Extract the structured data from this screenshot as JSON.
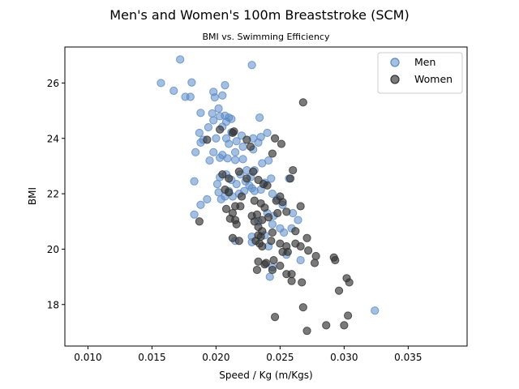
{
  "chart_data": {
    "type": "scatter",
    "title": "Men's and Women's 100m Breaststroke (SCM)",
    "subtitle": "BMI vs. Swimming Efficiency",
    "xlabel": "Speed / Kg (m/Kgs)",
    "ylabel": "BMI",
    "xlim": [
      0.0082,
      0.0396
    ],
    "ylim": [
      16.5,
      27.3
    ],
    "xticks": [
      "0.010",
      "0.015",
      "0.020",
      "0.025",
      "0.030",
      "0.035"
    ],
    "yticks": [
      "18",
      "20",
      "22",
      "24",
      "26"
    ],
    "legend_position": "top-right",
    "grid": false,
    "series": [
      {
        "name": "Men",
        "color": "#5b8ac6",
        "points": [
          [
            0.0172,
            26.85
          ],
          [
            0.0157,
            26.0
          ],
          [
            0.0181,
            26.02
          ],
          [
            0.0167,
            25.72
          ],
          [
            0.0176,
            25.5
          ],
          [
            0.018,
            25.5
          ],
          [
            0.0228,
            26.65
          ],
          [
            0.0198,
            25.68
          ],
          [
            0.0207,
            25.92
          ],
          [
            0.0205,
            25.55
          ],
          [
            0.0199,
            25.48
          ],
          [
            0.0202,
            25.08
          ],
          [
            0.0188,
            24.92
          ],
          [
            0.0197,
            24.9
          ],
          [
            0.0203,
            24.8
          ],
          [
            0.0207,
            24.82
          ],
          [
            0.021,
            24.75
          ],
          [
            0.0212,
            24.7
          ],
          [
            0.0208,
            24.6
          ],
          [
            0.0198,
            24.65
          ],
          [
            0.0194,
            24.4
          ],
          [
            0.0205,
            24.42
          ],
          [
            0.0212,
            24.22
          ],
          [
            0.0187,
            24.2
          ],
          [
            0.019,
            23.95
          ],
          [
            0.02,
            24.0
          ],
          [
            0.0208,
            24.0
          ],
          [
            0.0216,
            23.9
          ],
          [
            0.021,
            23.8
          ],
          [
            0.0188,
            23.85
          ],
          [
            0.0198,
            23.5
          ],
          [
            0.0184,
            23.5
          ],
          [
            0.0205,
            23.4
          ],
          [
            0.0215,
            23.5
          ],
          [
            0.0221,
            23.7
          ],
          [
            0.0229,
            23.6
          ],
          [
            0.0195,
            23.2
          ],
          [
            0.0203,
            23.3
          ],
          [
            0.0209,
            23.28
          ],
          [
            0.0215,
            23.22
          ],
          [
            0.0221,
            23.25
          ],
          [
            0.0234,
            24.75
          ],
          [
            0.0235,
            24.05
          ],
          [
            0.0233,
            23.85
          ],
          [
            0.024,
            24.2
          ],
          [
            0.022,
            24.1
          ],
          [
            0.0229,
            24.0
          ],
          [
            0.0241,
            23.2
          ],
          [
            0.0236,
            23.1
          ],
          [
            0.0183,
            22.45
          ],
          [
            0.0201,
            22.35
          ],
          [
            0.0203,
            22.6
          ],
          [
            0.0208,
            22.7
          ],
          [
            0.0212,
            22.5
          ],
          [
            0.0216,
            22.35
          ],
          [
            0.0219,
            22.7
          ],
          [
            0.0224,
            22.85
          ],
          [
            0.0227,
            22.6
          ],
          [
            0.0223,
            22.45
          ],
          [
            0.0226,
            22.3
          ],
          [
            0.023,
            22.85
          ],
          [
            0.0228,
            22.2
          ],
          [
            0.0222,
            22.1
          ],
          [
            0.0218,
            22.0
          ],
          [
            0.023,
            22.1
          ],
          [
            0.0235,
            22.15
          ],
          [
            0.0238,
            22.4
          ],
          [
            0.0243,
            22.55
          ],
          [
            0.021,
            22.1
          ],
          [
            0.0213,
            21.9
          ],
          [
            0.0204,
            21.8
          ],
          [
            0.0193,
            21.8
          ],
          [
            0.0188,
            21.6
          ],
          [
            0.0202,
            22.05
          ],
          [
            0.0207,
            21.9
          ],
          [
            0.0244,
            22.0
          ],
          [
            0.0248,
            21.8
          ],
          [
            0.0252,
            21.6
          ],
          [
            0.0257,
            22.55
          ],
          [
            0.026,
            21.3
          ],
          [
            0.0264,
            21.05
          ],
          [
            0.0245,
            21.2
          ],
          [
            0.024,
            21.3
          ],
          [
            0.0183,
            21.25
          ],
          [
            0.0233,
            21.0
          ],
          [
            0.0244,
            20.9
          ],
          [
            0.0238,
            20.5
          ],
          [
            0.025,
            20.75
          ],
          [
            0.0259,
            20.75
          ],
          [
            0.0253,
            20.6
          ],
          [
            0.0228,
            20.45
          ],
          [
            0.0228,
            20.25
          ],
          [
            0.0215,
            20.3
          ],
          [
            0.0241,
            20.1
          ],
          [
            0.0244,
            19.35
          ],
          [
            0.0242,
            19.0
          ],
          [
            0.0255,
            19.8
          ],
          [
            0.0266,
            19.6
          ],
          [
            0.0324,
            17.78
          ]
        ]
      },
      {
        "name": "Women",
        "color": "#333333",
        "points": [
          [
            0.0268,
            25.3
          ],
          [
            0.0203,
            24.32
          ],
          [
            0.0214,
            24.25
          ],
          [
            0.0213,
            24.2
          ],
          [
            0.0193,
            23.95
          ],
          [
            0.0246,
            24.0
          ],
          [
            0.0251,
            23.8
          ],
          [
            0.0224,
            23.95
          ],
          [
            0.0227,
            23.7
          ],
          [
            0.0244,
            23.45
          ],
          [
            0.026,
            22.85
          ],
          [
            0.0218,
            22.8
          ],
          [
            0.0205,
            22.7
          ],
          [
            0.021,
            22.55
          ],
          [
            0.0224,
            22.55
          ],
          [
            0.0229,
            22.8
          ],
          [
            0.0233,
            22.5
          ],
          [
            0.0237,
            22.35
          ],
          [
            0.024,
            22.3
          ],
          [
            0.0258,
            22.55
          ],
          [
            0.0207,
            22.15
          ],
          [
            0.021,
            22.05
          ],
          [
            0.022,
            21.9
          ],
          [
            0.023,
            21.75
          ],
          [
            0.0235,
            21.65
          ],
          [
            0.0238,
            21.5
          ],
          [
            0.0247,
            21.75
          ],
          [
            0.025,
            21.9
          ],
          [
            0.0252,
            21.7
          ],
          [
            0.0266,
            21.55
          ],
          [
            0.0215,
            21.55
          ],
          [
            0.0219,
            21.55
          ],
          [
            0.0208,
            21.45
          ],
          [
            0.0213,
            21.3
          ],
          [
            0.0228,
            21.2
          ],
          [
            0.0232,
            21.25
          ],
          [
            0.0236,
            21.05
          ],
          [
            0.0241,
            21.15
          ],
          [
            0.0248,
            21.3
          ],
          [
            0.0255,
            21.35
          ],
          [
            0.0211,
            21.1
          ],
          [
            0.0215,
            21.05
          ],
          [
            0.0216,
            20.9
          ],
          [
            0.0187,
            21.0
          ],
          [
            0.023,
            21.0
          ],
          [
            0.0233,
            20.8
          ],
          [
            0.0236,
            20.65
          ],
          [
            0.0233,
            20.5
          ],
          [
            0.0235,
            20.45
          ],
          [
            0.0244,
            20.6
          ],
          [
            0.0262,
            20.65
          ],
          [
            0.0243,
            20.3
          ],
          [
            0.0231,
            20.3
          ],
          [
            0.0234,
            20.2
          ],
          [
            0.0236,
            20.1
          ],
          [
            0.0213,
            20.4
          ],
          [
            0.0218,
            20.3
          ],
          [
            0.025,
            20.2
          ],
          [
            0.0255,
            20.1
          ],
          [
            0.0262,
            20.2
          ],
          [
            0.0266,
            20.1
          ],
          [
            0.0271,
            20.4
          ],
          [
            0.0252,
            19.9
          ],
          [
            0.0256,
            19.9
          ],
          [
            0.0272,
            19.95
          ],
          [
            0.0278,
            19.75
          ],
          [
            0.0292,
            19.7
          ],
          [
            0.0293,
            19.6
          ],
          [
            0.0277,
            19.5
          ],
          [
            0.0233,
            19.55
          ],
          [
            0.0239,
            19.5
          ],
          [
            0.0238,
            19.45
          ],
          [
            0.0245,
            19.6
          ],
          [
            0.025,
            19.4
          ],
          [
            0.0232,
            19.25
          ],
          [
            0.0244,
            19.25
          ],
          [
            0.0255,
            19.1
          ],
          [
            0.0259,
            19.1
          ],
          [
            0.0259,
            18.85
          ],
          [
            0.0267,
            18.8
          ],
          [
            0.0302,
            18.95
          ],
          [
            0.0304,
            18.8
          ],
          [
            0.0296,
            18.5
          ],
          [
            0.0268,
            17.9
          ],
          [
            0.0246,
            17.55
          ],
          [
            0.0303,
            17.6
          ],
          [
            0.0286,
            17.25
          ],
          [
            0.03,
            17.25
          ],
          [
            0.0271,
            17.05
          ]
        ]
      }
    ]
  }
}
